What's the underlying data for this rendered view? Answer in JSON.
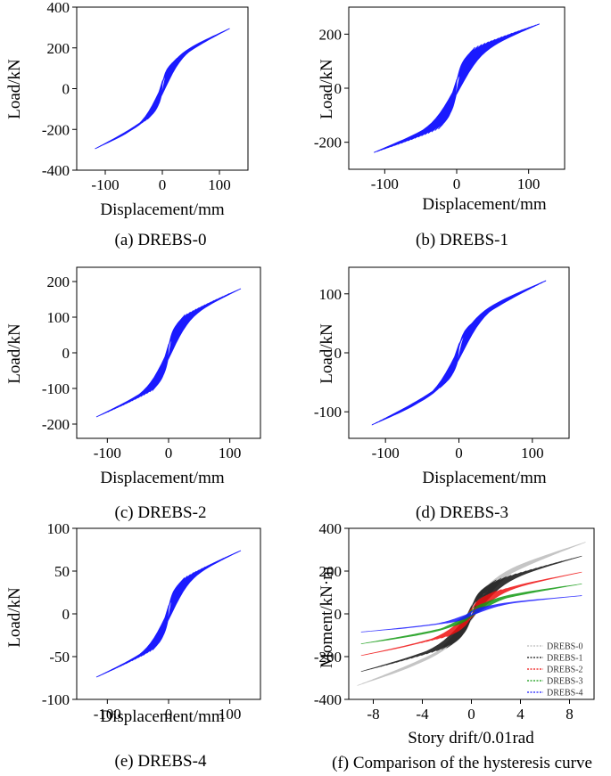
{
  "chart_data": [
    {
      "id": "a",
      "type": "line",
      "caption": "(a) DREBS-0",
      "xlabel": "Displacement/mm",
      "ylabel": "Load/kN",
      "xlim": [
        -150,
        150
      ],
      "ylim": [
        -400,
        400
      ],
      "xticks": [
        -100,
        0,
        100
      ],
      "yticks": [
        -400,
        -200,
        0,
        200,
        400
      ],
      "series": [
        {
          "name": "DREBS-0",
          "color": "#1a1aff",
          "max_disp_mm": 118,
          "peak_load_kN": 295,
          "hinge_load_kN": 140,
          "loops": 20
        }
      ]
    },
    {
      "id": "b",
      "type": "line",
      "caption": "(b) DREBS-1",
      "xlabel": "Displacement/mm",
      "ylabel": "Load/kN",
      "xlim": [
        -150,
        150
      ],
      "ylim": [
        -300,
        300
      ],
      "xticks": [
        -100,
        0,
        100
      ],
      "yticks": [
        -200,
        0,
        200
      ],
      "series": [
        {
          "name": "DREBS-1",
          "color": "#1a1aff",
          "max_disp_mm": 115,
          "peak_load_kN": 238,
          "hinge_load_kN": 145,
          "loops": 20
        }
      ]
    },
    {
      "id": "c",
      "type": "line",
      "caption": "(c) DREBS-2",
      "xlabel": "Displacement/mm",
      "ylabel": "Load/kN",
      "xlim": [
        -150,
        150
      ],
      "ylim": [
        -240,
        240
      ],
      "xticks": [
        -100,
        0,
        100
      ],
      "yticks": [
        -200,
        -100,
        0,
        100,
        200
      ],
      "series": [
        {
          "name": "DREBS-2",
          "color": "#1a1aff",
          "max_disp_mm": 118,
          "peak_load_kN": 180,
          "hinge_load_kN": 100,
          "loops": 20
        }
      ]
    },
    {
      "id": "d",
      "type": "line",
      "caption": "(d) DREBS-3",
      "xlabel": "Displacement/mm",
      "ylabel": "Load/kN",
      "xlim": [
        -150,
        150
      ],
      "ylim": [
        -145,
        145
      ],
      "xticks": [
        -100,
        0,
        100
      ],
      "yticks": [
        -100,
        0,
        100
      ],
      "series": [
        {
          "name": "DREBS-3",
          "color": "#1a1aff",
          "max_disp_mm": 118,
          "peak_load_kN": 122,
          "hinge_load_kN": 55,
          "loops": 20
        }
      ]
    },
    {
      "id": "e",
      "type": "line",
      "caption": "(e) DREBS-4",
      "xlabel": "Displacement/mm",
      "ylabel": "Load/kN",
      "xlim": [
        -150,
        150
      ],
      "ylim": [
        -100,
        100
      ],
      "xticks": [
        -100,
        0,
        100
      ],
      "yticks": [
        -100,
        -50,
        0,
        50,
        100
      ],
      "series": [
        {
          "name": "DREBS-4",
          "color": "#1a1aff",
          "max_disp_mm": 118,
          "peak_load_kN": 74,
          "hinge_load_kN": 40,
          "loops": 20
        }
      ]
    },
    {
      "id": "f",
      "type": "line",
      "caption": "(f) Comparison of the hysteresis curve",
      "xlabel": "Story drift/0.01rad",
      "ylabel": "Moment/kN·m",
      "xlim": [
        -10,
        10
      ],
      "ylim": [
        -400,
        400
      ],
      "xticks": [
        -8,
        -4,
        0,
        4,
        8
      ],
      "yticks": [
        -400,
        -200,
        0,
        200,
        400
      ],
      "legend_position": "lower-right",
      "series": [
        {
          "name": "DREBS-0",
          "color": "#bbbbbb",
          "max_disp_mm": 9.3,
          "peak_load_kN": 335,
          "hinge_load_kN": 150,
          "loops": 18
        },
        {
          "name": "DREBS-1",
          "color": "#111111",
          "max_disp_mm": 9.0,
          "peak_load_kN": 270,
          "hinge_load_kN": 150,
          "loops": 18
        },
        {
          "name": "DREBS-2",
          "color": "#ee1111",
          "max_disp_mm": 9.0,
          "peak_load_kN": 195,
          "hinge_load_kN": 100,
          "loops": 18
        },
        {
          "name": "DREBS-3",
          "color": "#119911",
          "max_disp_mm": 9.0,
          "peak_load_kN": 140,
          "hinge_load_kN": 60,
          "loops": 18
        },
        {
          "name": "DREBS-4",
          "color": "#1a1aff",
          "max_disp_mm": 9.0,
          "peak_load_kN": 85,
          "hinge_load_kN": 40,
          "loops": 18
        }
      ]
    }
  ]
}
